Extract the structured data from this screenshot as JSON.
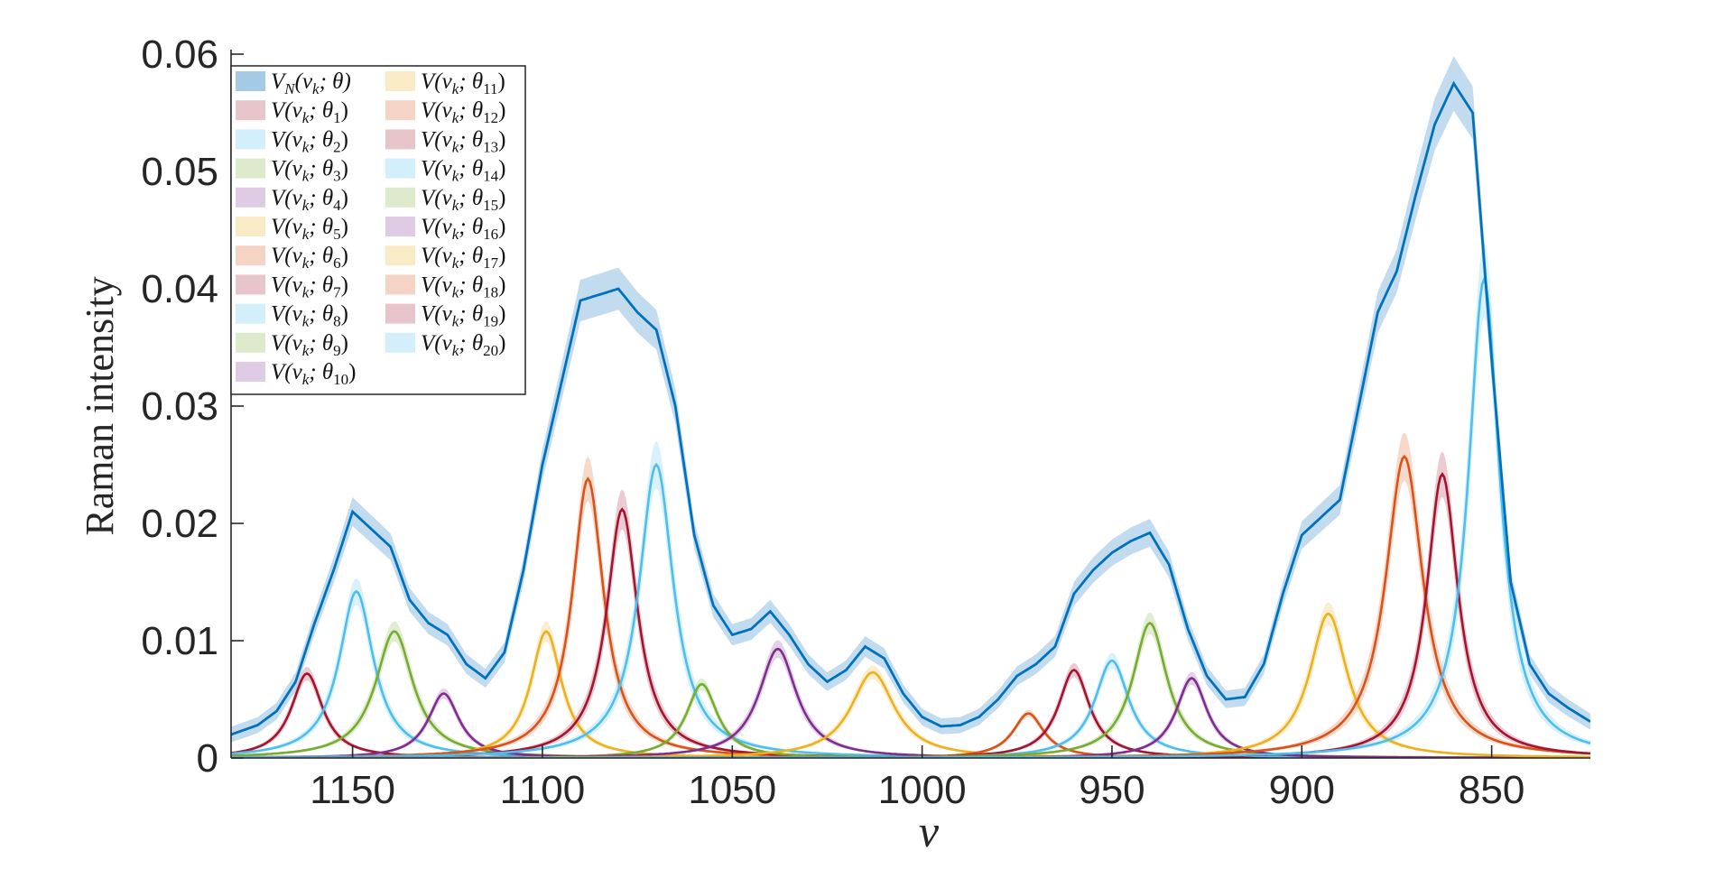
{
  "chart_data": {
    "type": "line",
    "xlabel": "ν",
    "ylabel": "Raman intensity",
    "xlim": [
      824,
      1182
    ],
    "x_reversed": true,
    "ylim": [
      0,
      0.06
    ],
    "xticks": [
      1150,
      1100,
      1050,
      1000,
      950,
      900,
      850
    ],
    "yticks": [
      0,
      0.01,
      0.02,
      0.03,
      0.04,
      0.05,
      0.06
    ],
    "ytick_labels": [
      "0",
      "0.01",
      "0.02",
      "0.03",
      "0.04",
      "0.05",
      "0.06"
    ],
    "grid": false,
    "legend_position": "top-left",
    "legend_columns": 2,
    "total": {
      "name": "V_N(ν_k; θ)",
      "legend": {
        "base": "V",
        "sub1": "N",
        "args": "(ν",
        "sub2": "k",
        "mid": "; θ)"
      },
      "color": "#0072BD",
      "band_color": "#8fbde0",
      "x": [
        1182,
        1175,
        1170,
        1165,
        1160,
        1155,
        1150,
        1145,
        1140,
        1135,
        1130,
        1125,
        1120,
        1115,
        1110,
        1105,
        1100,
        1095,
        1090,
        1085,
        1080,
        1075,
        1070,
        1065,
        1060,
        1055,
        1050,
        1045,
        1040,
        1035,
        1030,
        1025,
        1020,
        1015,
        1010,
        1005,
        1000,
        995,
        990,
        985,
        980,
        975,
        970,
        965,
        960,
        955,
        950,
        945,
        940,
        935,
        930,
        925,
        920,
        915,
        910,
        905,
        900,
        895,
        890,
        885,
        880,
        875,
        870,
        865,
        860,
        855,
        850,
        845,
        840,
        835,
        830,
        824
      ],
      "y": [
        0.002,
        0.0028,
        0.004,
        0.0065,
        0.0115,
        0.016,
        0.021,
        0.0195,
        0.018,
        0.0135,
        0.0115,
        0.0105,
        0.008,
        0.0068,
        0.009,
        0.016,
        0.025,
        0.032,
        0.039,
        0.0395,
        0.04,
        0.038,
        0.0365,
        0.03,
        0.019,
        0.013,
        0.0105,
        0.011,
        0.0125,
        0.0105,
        0.008,
        0.0065,
        0.0075,
        0.0095,
        0.0085,
        0.0055,
        0.0035,
        0.0027,
        0.0028,
        0.0035,
        0.005,
        0.007,
        0.008,
        0.0095,
        0.014,
        0.016,
        0.0175,
        0.0185,
        0.0192,
        0.0165,
        0.011,
        0.007,
        0.005,
        0.0052,
        0.008,
        0.014,
        0.019,
        0.0205,
        0.022,
        0.03,
        0.038,
        0.0415,
        0.048,
        0.054,
        0.0575,
        0.055,
        0.034,
        0.015,
        0.008,
        0.0055,
        0.0043,
        0.0031
      ]
    },
    "components": [
      {
        "name": "V(ν_k; θ_1)",
        "sub": "1",
        "center": 1162,
        "amp": 0.0072,
        "width": 5.0,
        "color": "#A2142F"
      },
      {
        "name": "V(ν_k; θ_2)",
        "sub": "2",
        "center": 1149,
        "amp": 0.0142,
        "width": 5.5,
        "color": "#4DBEEE"
      },
      {
        "name": "V(ν_k; θ_3)",
        "sub": "3",
        "center": 1139,
        "amp": 0.0108,
        "width": 6.0,
        "color": "#77AC30"
      },
      {
        "name": "V(ν_k; θ_4)",
        "sub": "4",
        "center": 1126,
        "amp": 0.0055,
        "width": 5.0,
        "color": "#7E2F8E"
      },
      {
        "name": "V(ν_k; θ_5)",
        "sub": "5",
        "center": 1099,
        "amp": 0.0108,
        "width": 5.0,
        "color": "#EDB120"
      },
      {
        "name": "V(ν_k; θ_6)",
        "sub": "6",
        "center": 1088,
        "amp": 0.0238,
        "width": 5.0,
        "color": "#D95319"
      },
      {
        "name": "V(ν_k; θ_7)",
        "sub": "7",
        "center": 1079,
        "amp": 0.0212,
        "width": 5.0,
        "color": "#A2142F"
      },
      {
        "name": "V(ν_k; θ_8)",
        "sub": "8",
        "center": 1070,
        "amp": 0.025,
        "width": 5.5,
        "color": "#4DBEEE"
      },
      {
        "name": "V(ν_k; θ_9)",
        "sub": "9",
        "center": 1058,
        "amp": 0.0063,
        "width": 5.0,
        "color": "#77AC30"
      },
      {
        "name": "V(ν_k; θ_10)",
        "sub": "10",
        "center": 1038,
        "amp": 0.0093,
        "width": 6.0,
        "color": "#7E2F8E"
      },
      {
        "name": "V(ν_k; θ_11)",
        "sub": "11",
        "center": 1013,
        "amp": 0.0073,
        "width": 7.0,
        "color": "#EDB120"
      },
      {
        "name": "V(ν_k; θ_12)",
        "sub": "12",
        "center": 972,
        "amp": 0.0038,
        "width": 5.0,
        "color": "#D95319"
      },
      {
        "name": "V(ν_k; θ_13)",
        "sub": "13",
        "center": 960,
        "amp": 0.0075,
        "width": 5.0,
        "color": "#A2142F"
      },
      {
        "name": "V(ν_k; θ_14)",
        "sub": "14",
        "center": 950,
        "amp": 0.0083,
        "width": 5.5,
        "color": "#4DBEEE"
      },
      {
        "name": "V(ν_k; θ_15)",
        "sub": "15",
        "center": 940,
        "amp": 0.0115,
        "width": 5.5,
        "color": "#77AC30"
      },
      {
        "name": "V(ν_k; θ_16)",
        "sub": "16",
        "center": 929,
        "amp": 0.0068,
        "width": 5.0,
        "color": "#7E2F8E"
      },
      {
        "name": "V(ν_k; θ_17)",
        "sub": "17",
        "center": 893,
        "amp": 0.0123,
        "width": 6.0,
        "color": "#EDB120"
      },
      {
        "name": "V(ν_k; θ_18)",
        "sub": "18",
        "center": 873,
        "amp": 0.0257,
        "width": 6.0,
        "color": "#D95319"
      },
      {
        "name": "V(ν_k; θ_19)",
        "sub": "19",
        "center": 863,
        "amp": 0.0242,
        "width": 5.0,
        "color": "#A2142F"
      },
      {
        "name": "V(ν_k; θ_20)",
        "sub": "20",
        "center": 852,
        "amp": 0.0408,
        "width": 5.0,
        "color": "#4DBEEE"
      }
    ]
  }
}
